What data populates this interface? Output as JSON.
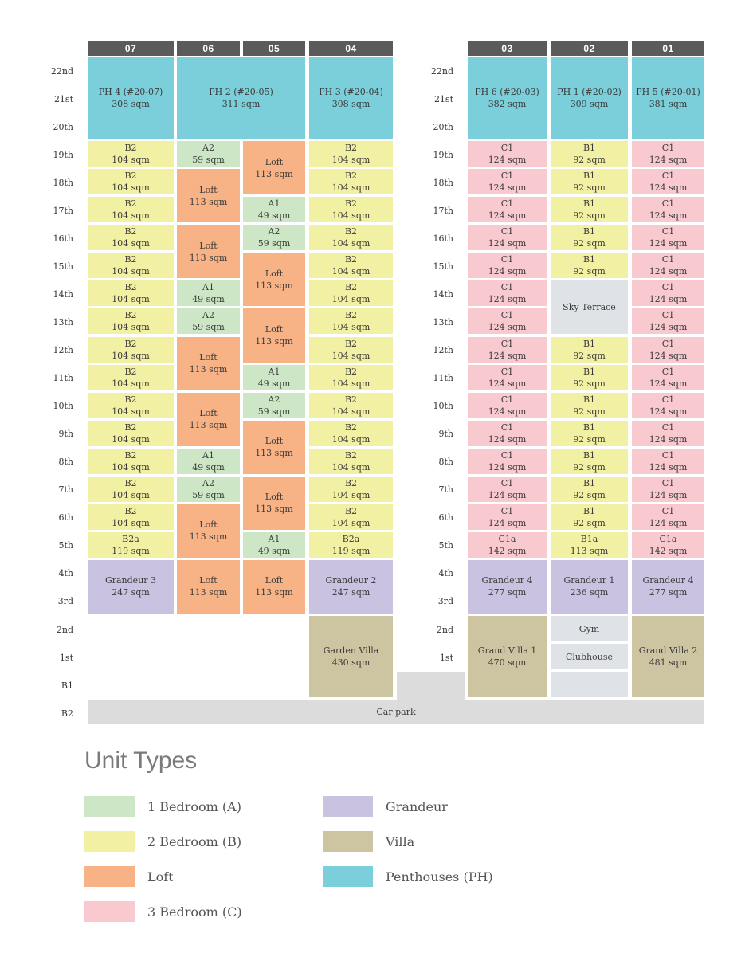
{
  "colors": {
    "A": "#cde6c6",
    "B": "#f2f0a3",
    "Loft": "#f7b386",
    "C": "#f8c9cf",
    "Grandeur": "#c9c2e0",
    "Villa": "#cdc4a2",
    "PH": "#7bcfda",
    "Facility": "#dfe3e7",
    "Carpark": "#dcdcdc",
    "Header": "#5b5b5b"
  },
  "columns": [
    "07",
    "06",
    "05",
    "04",
    "03",
    "02",
    "01"
  ],
  "floors": [
    "22nd",
    "21st",
    "20th",
    "19th",
    "18th",
    "17th",
    "16th",
    "15th",
    "14th",
    "13th",
    "12th",
    "11th",
    "10th",
    "9th",
    "8th",
    "7th",
    "6th",
    "5th",
    "4th",
    "3rd",
    "2nd",
    "1st",
    "B1",
    "B2"
  ],
  "units": [
    {
      "col": "07",
      "top": "22nd",
      "bottom": "20th",
      "type": "PH",
      "name": "PH 4 (#20-07)",
      "area": "308 sqm"
    },
    {
      "col": "06-05",
      "top": "22nd",
      "bottom": "20th",
      "type": "PH",
      "name": "PH 2 (#20-05)",
      "area": "311 sqm"
    },
    {
      "col": "04",
      "top": "22nd",
      "bottom": "20th",
      "type": "PH",
      "name": "PH 3 (#20-04)",
      "area": "308 sqm"
    },
    {
      "col": "03",
      "top": "22nd",
      "bottom": "20th",
      "type": "PH",
      "name": "PH 6 (#20-03)",
      "area": "382 sqm"
    },
    {
      "col": "02",
      "top": "22nd",
      "bottom": "20th",
      "type": "PH",
      "name": "PH 1 (#20-02)",
      "area": "309 sqm"
    },
    {
      "col": "01",
      "top": "22nd",
      "bottom": "20th",
      "type": "PH",
      "name": "PH 5 (#20-01)",
      "area": "381 sqm"
    },
    {
      "col": "07",
      "top": "19th",
      "bottom": "19th",
      "type": "B",
      "name": "B2",
      "area": "104 sqm"
    },
    {
      "col": "07",
      "top": "18th",
      "bottom": "18th",
      "type": "B",
      "name": "B2",
      "area": "104 sqm"
    },
    {
      "col": "07",
      "top": "17th",
      "bottom": "17th",
      "type": "B",
      "name": "B2",
      "area": "104 sqm"
    },
    {
      "col": "07",
      "top": "16th",
      "bottom": "16th",
      "type": "B",
      "name": "B2",
      "area": "104 sqm"
    },
    {
      "col": "07",
      "top": "15th",
      "bottom": "15th",
      "type": "B",
      "name": "B2",
      "area": "104 sqm"
    },
    {
      "col": "07",
      "top": "14th",
      "bottom": "14th",
      "type": "B",
      "name": "B2",
      "area": "104 sqm"
    },
    {
      "col": "07",
      "top": "13th",
      "bottom": "13th",
      "type": "B",
      "name": "B2",
      "area": "104 sqm"
    },
    {
      "col": "07",
      "top": "12th",
      "bottom": "12th",
      "type": "B",
      "name": "B2",
      "area": "104 sqm"
    },
    {
      "col": "07",
      "top": "11th",
      "bottom": "11th",
      "type": "B",
      "name": "B2",
      "area": "104 sqm"
    },
    {
      "col": "07",
      "top": "10th",
      "bottom": "10th",
      "type": "B",
      "name": "B2",
      "area": "104 sqm"
    },
    {
      "col": "07",
      "top": "9th",
      "bottom": "9th",
      "type": "B",
      "name": "B2",
      "area": "104 sqm"
    },
    {
      "col": "07",
      "top": "8th",
      "bottom": "8th",
      "type": "B",
      "name": "B2",
      "area": "104 sqm"
    },
    {
      "col": "07",
      "top": "7th",
      "bottom": "7th",
      "type": "B",
      "name": "B2",
      "area": "104 sqm"
    },
    {
      "col": "07",
      "top": "6th",
      "bottom": "6th",
      "type": "B",
      "name": "B2",
      "area": "104 sqm"
    },
    {
      "col": "07",
      "top": "5th",
      "bottom": "5th",
      "type": "B",
      "name": "B2a",
      "area": "119 sqm"
    },
    {
      "col": "07",
      "top": "4th",
      "bottom": "3rd",
      "type": "Grandeur",
      "name": "Grandeur 3",
      "area": "247 sqm"
    },
    {
      "col": "06",
      "top": "19th",
      "bottom": "19th",
      "type": "A",
      "name": "A2",
      "area": "59 sqm"
    },
    {
      "col": "06",
      "top": "18th",
      "bottom": "17th",
      "type": "Loft",
      "name": "Loft",
      "area": "113 sqm"
    },
    {
      "col": "06",
      "top": "16th",
      "bottom": "15th",
      "type": "Loft",
      "name": "Loft",
      "area": "113 sqm"
    },
    {
      "col": "06",
      "top": "14th",
      "bottom": "14th",
      "type": "A",
      "name": "A1",
      "area": "49 sqm"
    },
    {
      "col": "06",
      "top": "13th",
      "bottom": "13th",
      "type": "A",
      "name": "A2",
      "area": "59 sqm"
    },
    {
      "col": "06",
      "top": "12th",
      "bottom": "11th",
      "type": "Loft",
      "name": "Loft",
      "area": "113 sqm"
    },
    {
      "col": "06",
      "top": "10th",
      "bottom": "9th",
      "type": "Loft",
      "name": "Loft",
      "area": "113 sqm"
    },
    {
      "col": "06",
      "top": "8th",
      "bottom": "8th",
      "type": "A",
      "name": "A1",
      "area": "49 sqm"
    },
    {
      "col": "06",
      "top": "7th",
      "bottom": "7th",
      "type": "A",
      "name": "A2",
      "area": "59 sqm"
    },
    {
      "col": "06",
      "top": "6th",
      "bottom": "5th",
      "type": "Loft",
      "name": "Loft",
      "area": "113 sqm"
    },
    {
      "col": "06",
      "top": "4th",
      "bottom": "3rd",
      "type": "Loft",
      "name": "Loft",
      "area": "113 sqm"
    },
    {
      "col": "05",
      "top": "19th",
      "bottom": "18th",
      "type": "Loft",
      "name": "Loft",
      "area": "113 sqm"
    },
    {
      "col": "05",
      "top": "17th",
      "bottom": "17th",
      "type": "A",
      "name": "A1",
      "area": "49 sqm"
    },
    {
      "col": "05",
      "top": "16th",
      "bottom": "16th",
      "type": "A",
      "name": "A2",
      "area": "59 sqm"
    },
    {
      "col": "05",
      "top": "15th",
      "bottom": "14th",
      "type": "Loft",
      "name": "Loft",
      "area": "113 sqm"
    },
    {
      "col": "05",
      "top": "13th",
      "bottom": "12th",
      "type": "Loft",
      "name": "Loft",
      "area": "113 sqm"
    },
    {
      "col": "05",
      "top": "11th",
      "bottom": "11th",
      "type": "A",
      "name": "A1",
      "area": "49 sqm"
    },
    {
      "col": "05",
      "top": "10th",
      "bottom": "10th",
      "type": "A",
      "name": "A2",
      "area": "59 sqm"
    },
    {
      "col": "05",
      "top": "9th",
      "bottom": "8th",
      "type": "Loft",
      "name": "Loft",
      "area": "113 sqm"
    },
    {
      "col": "05",
      "top": "7th",
      "bottom": "6th",
      "type": "Loft",
      "name": "Loft",
      "area": "113 sqm"
    },
    {
      "col": "05",
      "top": "5th",
      "bottom": "5th",
      "type": "A",
      "name": "A1",
      "area": "49 sqm"
    },
    {
      "col": "05",
      "top": "4th",
      "bottom": "3rd",
      "type": "Loft",
      "name": "Loft",
      "area": "113 sqm"
    },
    {
      "col": "04",
      "top": "19th",
      "bottom": "19th",
      "type": "B",
      "name": "B2",
      "area": "104 sqm"
    },
    {
      "col": "04",
      "top": "18th",
      "bottom": "18th",
      "type": "B",
      "name": "B2",
      "area": "104 sqm"
    },
    {
      "col": "04",
      "top": "17th",
      "bottom": "17th",
      "type": "B",
      "name": "B2",
      "area": "104 sqm"
    },
    {
      "col": "04",
      "top": "16th",
      "bottom": "16th",
      "type": "B",
      "name": "B2",
      "area": "104 sqm"
    },
    {
      "col": "04",
      "top": "15th",
      "bottom": "15th",
      "type": "B",
      "name": "B2",
      "area": "104 sqm"
    },
    {
      "col": "04",
      "top": "14th",
      "bottom": "14th",
      "type": "B",
      "name": "B2",
      "area": "104 sqm"
    },
    {
      "col": "04",
      "top": "13th",
      "bottom": "13th",
      "type": "B",
      "name": "B2",
      "area": "104 sqm"
    },
    {
      "col": "04",
      "top": "12th",
      "bottom": "12th",
      "type": "B",
      "name": "B2",
      "area": "104 sqm"
    },
    {
      "col": "04",
      "top": "11th",
      "bottom": "11th",
      "type": "B",
      "name": "B2",
      "area": "104 sqm"
    },
    {
      "col": "04",
      "top": "10th",
      "bottom": "10th",
      "type": "B",
      "name": "B2",
      "area": "104 sqm"
    },
    {
      "col": "04",
      "top": "9th",
      "bottom": "9th",
      "type": "B",
      "name": "B2",
      "area": "104 sqm"
    },
    {
      "col": "04",
      "top": "8th",
      "bottom": "8th",
      "type": "B",
      "name": "B2",
      "area": "104 sqm"
    },
    {
      "col": "04",
      "top": "7th",
      "bottom": "7th",
      "type": "B",
      "name": "B2",
      "area": "104 sqm"
    },
    {
      "col": "04",
      "top": "6th",
      "bottom": "6th",
      "type": "B",
      "name": "B2",
      "area": "104 sqm"
    },
    {
      "col": "04",
      "top": "5th",
      "bottom": "5th",
      "type": "B",
      "name": "B2a",
      "area": "119 sqm"
    },
    {
      "col": "04",
      "top": "4th",
      "bottom": "3rd",
      "type": "Grandeur",
      "name": "Grandeur 2",
      "area": "247 sqm"
    },
    {
      "col": "04",
      "top": "2nd",
      "bottom": "B1",
      "type": "Villa",
      "name": "Garden Villa",
      "area": "430 sqm"
    },
    {
      "col": "03",
      "top": "19th",
      "bottom": "19th",
      "type": "C",
      "name": "C1",
      "area": "124 sqm"
    },
    {
      "col": "03",
      "top": "18th",
      "bottom": "18th",
      "type": "C",
      "name": "C1",
      "area": "124 sqm"
    },
    {
      "col": "03",
      "top": "17th",
      "bottom": "17th",
      "type": "C",
      "name": "C1",
      "area": "124 sqm"
    },
    {
      "col": "03",
      "top": "16th",
      "bottom": "16th",
      "type": "C",
      "name": "C1",
      "area": "124 sqm"
    },
    {
      "col": "03",
      "top": "15th",
      "bottom": "15th",
      "type": "C",
      "name": "C1",
      "area": "124 sqm"
    },
    {
      "col": "03",
      "top": "14th",
      "bottom": "14th",
      "type": "C",
      "name": "C1",
      "area": "124 sqm"
    },
    {
      "col": "03",
      "top": "13th",
      "bottom": "13th",
      "type": "C",
      "name": "C1",
      "area": "124 sqm"
    },
    {
      "col": "03",
      "top": "12th",
      "bottom": "12th",
      "type": "C",
      "name": "C1",
      "area": "124 sqm"
    },
    {
      "col": "03",
      "top": "11th",
      "bottom": "11th",
      "type": "C",
      "name": "C1",
      "area": "124 sqm"
    },
    {
      "col": "03",
      "top": "10th",
      "bottom": "10th",
      "type": "C",
      "name": "C1",
      "area": "124 sqm"
    },
    {
      "col": "03",
      "top": "9th",
      "bottom": "9th",
      "type": "C",
      "name": "C1",
      "area": "124 sqm"
    },
    {
      "col": "03",
      "top": "8th",
      "bottom": "8th",
      "type": "C",
      "name": "C1",
      "area": "124 sqm"
    },
    {
      "col": "03",
      "top": "7th",
      "bottom": "7th",
      "type": "C",
      "name": "C1",
      "area": "124 sqm"
    },
    {
      "col": "03",
      "top": "6th",
      "bottom": "6th",
      "type": "C",
      "name": "C1",
      "area": "124 sqm"
    },
    {
      "col": "03",
      "top": "5th",
      "bottom": "5th",
      "type": "C",
      "name": "C1a",
      "area": "142 sqm"
    },
    {
      "col": "03",
      "top": "4th",
      "bottom": "3rd",
      "type": "Grandeur",
      "name": "Grandeur 4",
      "area": "277 sqm"
    },
    {
      "col": "03",
      "top": "2nd",
      "bottom": "B1",
      "type": "Villa",
      "name": "Grand Villa 1",
      "area": "470 sqm"
    },
    {
      "col": "02",
      "top": "19th",
      "bottom": "19th",
      "type": "B",
      "name": "B1",
      "area": "92 sqm"
    },
    {
      "col": "02",
      "top": "18th",
      "bottom": "18th",
      "type": "B",
      "name": "B1",
      "area": "92 sqm"
    },
    {
      "col": "02",
      "top": "17th",
      "bottom": "17th",
      "type": "B",
      "name": "B1",
      "area": "92 sqm"
    },
    {
      "col": "02",
      "top": "16th",
      "bottom": "16th",
      "type": "B",
      "name": "B1",
      "area": "92 sqm"
    },
    {
      "col": "02",
      "top": "15th",
      "bottom": "15th",
      "type": "B",
      "name": "B1",
      "area": "92 sqm"
    },
    {
      "col": "02",
      "top": "14th",
      "bottom": "13th",
      "type": "Facility",
      "name": "Sky Terrace",
      "area": ""
    },
    {
      "col": "02",
      "top": "12th",
      "bottom": "12th",
      "type": "B",
      "name": "B1",
      "area": "92 sqm"
    },
    {
      "col": "02",
      "top": "11th",
      "bottom": "11th",
      "type": "B",
      "name": "B1",
      "area": "92 sqm"
    },
    {
      "col": "02",
      "top": "10th",
      "bottom": "10th",
      "type": "B",
      "name": "B1",
      "area": "92 sqm"
    },
    {
      "col": "02",
      "top": "9th",
      "bottom": "9th",
      "type": "B",
      "name": "B1",
      "area": "92 sqm"
    },
    {
      "col": "02",
      "top": "8th",
      "bottom": "8th",
      "type": "B",
      "name": "B1",
      "area": "92 sqm"
    },
    {
      "col": "02",
      "top": "7th",
      "bottom": "7th",
      "type": "B",
      "name": "B1",
      "area": "92 sqm"
    },
    {
      "col": "02",
      "top": "6th",
      "bottom": "6th",
      "type": "B",
      "name": "B1",
      "area": "92 sqm"
    },
    {
      "col": "02",
      "top": "5th",
      "bottom": "5th",
      "type": "B",
      "name": "B1a",
      "area": "113 sqm"
    },
    {
      "col": "02",
      "top": "4th",
      "bottom": "3rd",
      "type": "Grandeur",
      "name": "Grandeur 1",
      "area": "236 sqm"
    },
    {
      "col": "02",
      "top": "2nd",
      "bottom": "2nd",
      "type": "Facility",
      "name": "Gym",
      "area": ""
    },
    {
      "col": "02",
      "top": "1st",
      "bottom": "1st",
      "type": "Facility",
      "name": "Clubhouse",
      "area": ""
    },
    {
      "col": "02",
      "top": "B1",
      "bottom": "B1",
      "type": "Facility",
      "name": "",
      "area": ""
    },
    {
      "col": "01",
      "top": "19th",
      "bottom": "19th",
      "type": "C",
      "name": "C1",
      "area": "124 sqm"
    },
    {
      "col": "01",
      "top": "18th",
      "bottom": "18th",
      "type": "C",
      "name": "C1",
      "area": "124 sqm"
    },
    {
      "col": "01",
      "top": "17th",
      "bottom": "17th",
      "type": "C",
      "name": "C1",
      "area": "124 sqm"
    },
    {
      "col": "01",
      "top": "16th",
      "bottom": "16th",
      "type": "C",
      "name": "C1",
      "area": "124 sqm"
    },
    {
      "col": "01",
      "top": "15th",
      "bottom": "15th",
      "type": "C",
      "name": "C1",
      "area": "124 sqm"
    },
    {
      "col": "01",
      "top": "14th",
      "bottom": "14th",
      "type": "C",
      "name": "C1",
      "area": "124 sqm"
    },
    {
      "col": "01",
      "top": "13th",
      "bottom": "13th",
      "type": "C",
      "name": "C1",
      "area": "124 sqm"
    },
    {
      "col": "01",
      "top": "12th",
      "bottom": "12th",
      "type": "C",
      "name": "C1",
      "area": "124 sqm"
    },
    {
      "col": "01",
      "top": "11th",
      "bottom": "11th",
      "type": "C",
      "name": "C1",
      "area": "124 sqm"
    },
    {
      "col": "01",
      "top": "10th",
      "bottom": "10th",
      "type": "C",
      "name": "C1",
      "area": "124 sqm"
    },
    {
      "col": "01",
      "top": "9th",
      "bottom": "9th",
      "type": "C",
      "name": "C1",
      "area": "124 sqm"
    },
    {
      "col": "01",
      "top": "8th",
      "bottom": "8th",
      "type": "C",
      "name": "C1",
      "area": "124 sqm"
    },
    {
      "col": "01",
      "top": "7th",
      "bottom": "7th",
      "type": "C",
      "name": "C1",
      "area": "124 sqm"
    },
    {
      "col": "01",
      "top": "6th",
      "bottom": "6th",
      "type": "C",
      "name": "C1",
      "area": "124 sqm"
    },
    {
      "col": "01",
      "top": "5th",
      "bottom": "5th",
      "type": "C",
      "name": "C1a",
      "area": "142 sqm"
    },
    {
      "col": "01",
      "top": "4th",
      "bottom": "3rd",
      "type": "Grandeur",
      "name": "Grandeur 4",
      "area": "277 sqm"
    },
    {
      "col": "01",
      "top": "2nd",
      "bottom": "B1",
      "type": "Villa",
      "name": "Grand Villa 2",
      "area": "481 sqm"
    },
    {
      "col": "gap",
      "top": "B1",
      "bottom": "B1",
      "type": "Carpark",
      "name": "",
      "area": ""
    },
    {
      "col": "all",
      "top": "B2",
      "bottom": "B2",
      "type": "Carpark",
      "name": "Car park",
      "area": ""
    }
  ],
  "legend": {
    "title": "Unit Types",
    "items": [
      {
        "type": "A",
        "label": "1 Bedroom (A)"
      },
      {
        "type": "B",
        "label": "2 Bedroom (B)"
      },
      {
        "type": "Loft",
        "label": "Loft"
      },
      {
        "type": "C",
        "label": "3 Bedroom (C)"
      },
      {
        "type": "Grandeur",
        "label": "Grandeur"
      },
      {
        "type": "Villa",
        "label": "Villa"
      },
      {
        "type": "PH",
        "label": "Penthouses (PH)"
      }
    ]
  }
}
